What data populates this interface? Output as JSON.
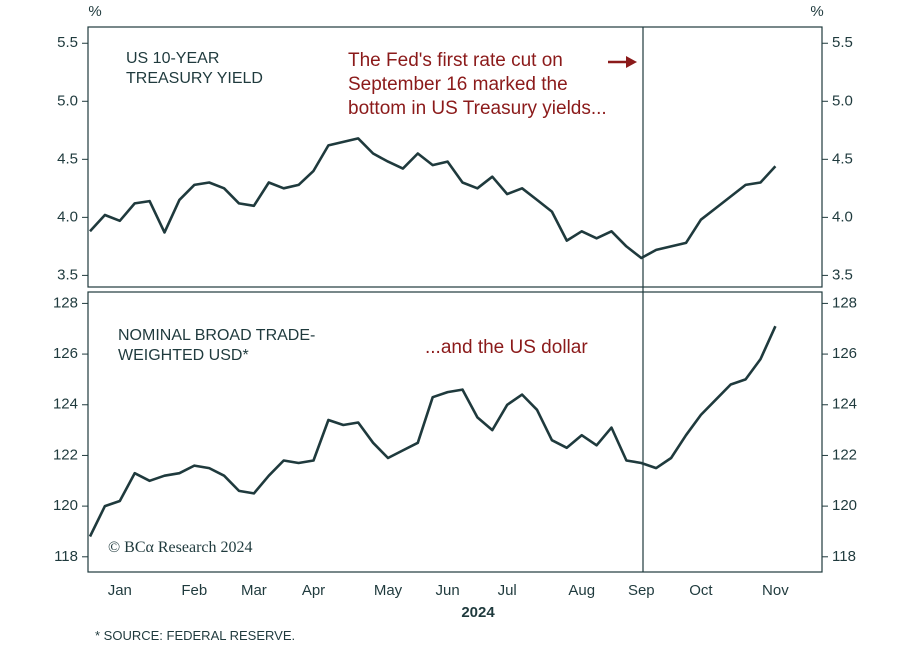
{
  "chart_data": [
    {
      "type": "line",
      "title": "US 10-YEAR TREASURY YIELD",
      "y_label": "%",
      "annotation": "The Fed's first rate cut on September 16 marked the bottom in US Treasury yields...",
      "series": [
        {
          "name": "US 10-year Treasury yield",
          "color": "#1f3a3d",
          "values": [
            3.88,
            4.02,
            3.97,
            4.12,
            4.14,
            3.87,
            4.15,
            4.28,
            4.3,
            4.25,
            4.12,
            4.1,
            4.3,
            4.25,
            4.28,
            4.4,
            4.62,
            4.65,
            4.68,
            4.55,
            4.48,
            4.42,
            4.55,
            4.45,
            4.48,
            4.3,
            4.25,
            4.35,
            4.2,
            4.25,
            4.15,
            4.05,
            3.8,
            3.88,
            3.82,
            3.88,
            3.75,
            3.65,
            3.72,
            3.75,
            3.78,
            3.98,
            4.08,
            4.18,
            4.28,
            4.3,
            4.44
          ]
        }
      ],
      "ylim": [
        3.4,
        5.64
      ],
      "yticks": [
        3.5,
        {
          "value": 4,
          "label": "4.0"
        },
        4.5,
        {
          "value": 5,
          "label": "5.0"
        },
        5.5
      ]
    },
    {
      "type": "line",
      "title": "NOMINAL BROAD TRADE-WEIGHTED USD*",
      "annotation": "...and the US dollar",
      "x_label": "2024",
      "categories": [
        null,
        null,
        "Jan",
        null,
        null,
        null,
        null,
        "Feb",
        null,
        null,
        null,
        "Mar",
        null,
        null,
        null,
        "Apr",
        null,
        null,
        null,
        null,
        "May",
        null,
        null,
        null,
        "Jun",
        null,
        null,
        null,
        "Jul",
        null,
        null,
        null,
        null,
        "Aug",
        null,
        null,
        null,
        "Sep",
        null,
        null,
        null,
        "Oct",
        null,
        null,
        null,
        null,
        "Nov"
      ],
      "series": [
        {
          "name": "Nominal broad trade-weighted USD",
          "color": "#1f3a3d",
          "values": [
            118.8,
            120.0,
            120.2,
            121.3,
            121.0,
            121.2,
            121.3,
            121.6,
            121.5,
            121.2,
            120.6,
            120.5,
            121.2,
            121.8,
            121.7,
            121.8,
            123.4,
            123.2,
            123.3,
            122.5,
            121.9,
            122.2,
            122.5,
            124.3,
            124.5,
            124.6,
            123.5,
            123.0,
            124.0,
            124.4,
            123.8,
            122.6,
            122.3,
            122.8,
            122.4,
            123.1,
            121.8,
            121.7,
            121.5,
            121.9,
            122.8,
            123.6,
            124.2,
            124.8,
            125.0,
            125.8,
            127.1
          ]
        }
      ],
      "ylim": [
        117.4,
        128.45
      ],
      "yticks": [
        118,
        120,
        122,
        124,
        126,
        128
      ]
    }
  ],
  "copyright": "© BCα Research 2024",
  "source": "* SOURCE: FEDERAL RESERVE."
}
